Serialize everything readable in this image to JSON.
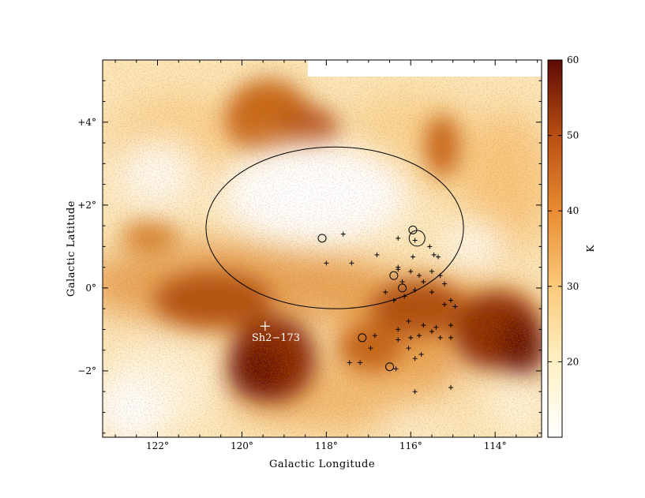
{
  "chart_data": {
    "type": "heatmap",
    "title": "",
    "xlabel": "Galactic Longitude",
    "ylabel": "Galactic Latitude",
    "xlim": [
      123.3,
      112.9
    ],
    "ylim": [
      -3.6,
      5.5
    ],
    "x_ticks": [
      {
        "value": 122,
        "label": "122°"
      },
      {
        "value": 120,
        "label": "120°"
      },
      {
        "value": 118,
        "label": "118°"
      },
      {
        "value": 116,
        "label": "116°"
      },
      {
        "value": 114,
        "label": "114°"
      }
    ],
    "y_ticks": [
      {
        "value": 4,
        "label": "+4°"
      },
      {
        "value": 2,
        "label": "+2°"
      },
      {
        "value": 0,
        "label": "0°"
      },
      {
        "value": -2,
        "label": "−2°"
      }
    ],
    "colorbar": {
      "label": "K",
      "range": [
        10,
        60
      ],
      "ticks": [
        20,
        30,
        40,
        50,
        60
      ],
      "colors": [
        "#ffffff",
        "#fff1c4",
        "#fbc97a",
        "#e98c33",
        "#b84e12",
        "#5e0a05"
      ]
    },
    "ellipse": {
      "center_l": 117.8,
      "center_b": 1.45,
      "semi_axis_l": 3.05,
      "semi_axis_b": 1.95
    },
    "circles": [
      {
        "l": 118.1,
        "b": 1.2
      },
      {
        "l": 115.95,
        "b": 1.4
      },
      {
        "l": 115.85,
        "b": 1.2
      },
      {
        "l": 116.4,
        "b": 0.3
      },
      {
        "l": 116.2,
        "b": 0.0
      },
      {
        "l": 117.15,
        "b": -1.2
      },
      {
        "l": 116.5,
        "b": -1.9
      }
    ],
    "circle_sizes": [
      1,
      1,
      2,
      1,
      1,
      1,
      1
    ],
    "crosses": [
      [
        117.6,
        1.3
      ],
      [
        116.3,
        1.2
      ],
      [
        115.9,
        1.15
      ],
      [
        118.0,
        0.6
      ],
      [
        117.4,
        0.6
      ],
      [
        116.8,
        0.8
      ],
      [
        116.3,
        0.5
      ],
      [
        115.95,
        0.75
      ],
      [
        115.55,
        1.0
      ],
      [
        115.45,
        0.8
      ],
      [
        115.35,
        0.75
      ],
      [
        116.3,
        0.45
      ],
      [
        116.2,
        0.15
      ],
      [
        116.0,
        0.4
      ],
      [
        115.8,
        0.3
      ],
      [
        115.5,
        0.4
      ],
      [
        115.3,
        0.3
      ],
      [
        115.2,
        0.1
      ],
      [
        116.4,
        -0.3
      ],
      [
        116.15,
        -0.2
      ],
      [
        115.9,
        -0.05
      ],
      [
        115.7,
        0.15
      ],
      [
        115.5,
        -0.1
      ],
      [
        115.2,
        -0.4
      ],
      [
        115.05,
        -0.3
      ],
      [
        114.95,
        -0.45
      ],
      [
        116.6,
        -0.1
      ],
      [
        116.05,
        -0.8
      ],
      [
        116.3,
        -1.0
      ],
      [
        115.7,
        -0.9
      ],
      [
        115.4,
        -0.95
      ],
      [
        115.05,
        -0.9
      ],
      [
        116.85,
        -1.15
      ],
      [
        116.3,
        -1.25
      ],
      [
        116.0,
        -1.2
      ],
      [
        115.8,
        -1.15
      ],
      [
        115.5,
        -1.05
      ],
      [
        115.3,
        -1.2
      ],
      [
        115.05,
        -1.2
      ],
      [
        116.95,
        -1.45
      ],
      [
        116.05,
        -1.45
      ],
      [
        115.9,
        -1.7
      ],
      [
        115.75,
        -1.6
      ],
      [
        117.45,
        -1.8
      ],
      [
        117.2,
        -1.8
      ],
      [
        116.35,
        -1.95
      ],
      [
        115.9,
        -2.5
      ],
      [
        115.05,
        -2.4
      ]
    ],
    "annotation": {
      "l": 119.45,
      "b": -0.92,
      "text": "Sh2−173"
    },
    "blank_regions": [
      {
        "l_from": 118.2,
        "l_to": 112.9,
        "b_from": 5.1,
        "b_to": 5.5
      }
    ]
  }
}
